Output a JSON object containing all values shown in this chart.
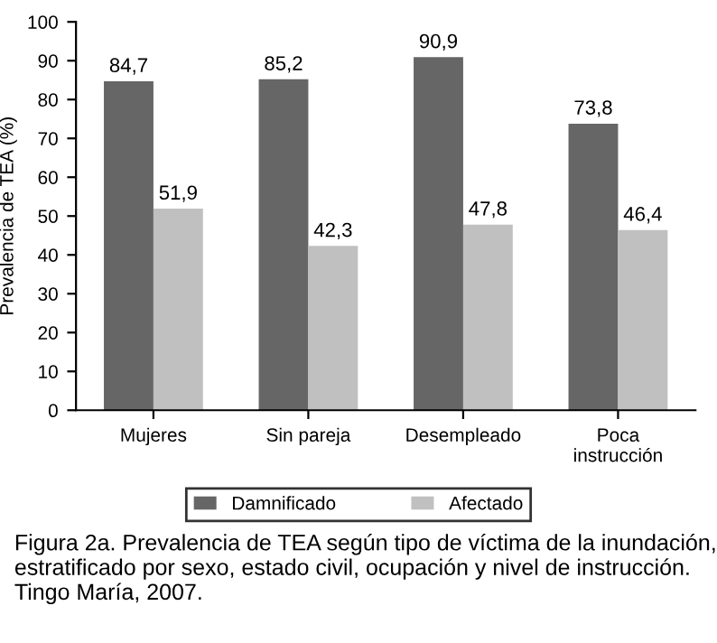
{
  "chart_data": {
    "type": "bar",
    "ylabel": "Prevalencia de TEA (%)",
    "categories": [
      "Mujeres",
      "Sin pareja",
      "Desempleado",
      "Poca\ninstrucción"
    ],
    "series": [
      {
        "name": "Damnificado",
        "color": "#666666",
        "values": [
          84.7,
          85.2,
          90.9,
          73.8
        ],
        "value_labels": [
          "84,7",
          "85,2",
          "90,9",
          "73,8"
        ]
      },
      {
        "name": "Afectado",
        "color": "#c0c0c0",
        "values": [
          51.9,
          42.3,
          47.8,
          46.4
        ],
        "value_labels": [
          "51,9",
          "42,3",
          "47,8",
          "46,4"
        ]
      }
    ],
    "ylim": [
      0,
      100
    ],
    "yticks": [
      0,
      10,
      20,
      30,
      40,
      50,
      60,
      70,
      80,
      90,
      100
    ],
    "grid": false,
    "legend": "bottom",
    "annotations": [
      "Figura 2a. Prevalencia de TEA según tipo de víctima de la inundación, estratificado por sexo, estado civil, ocupación y nivel de instrucción. Tingo María, 2007."
    ]
  }
}
